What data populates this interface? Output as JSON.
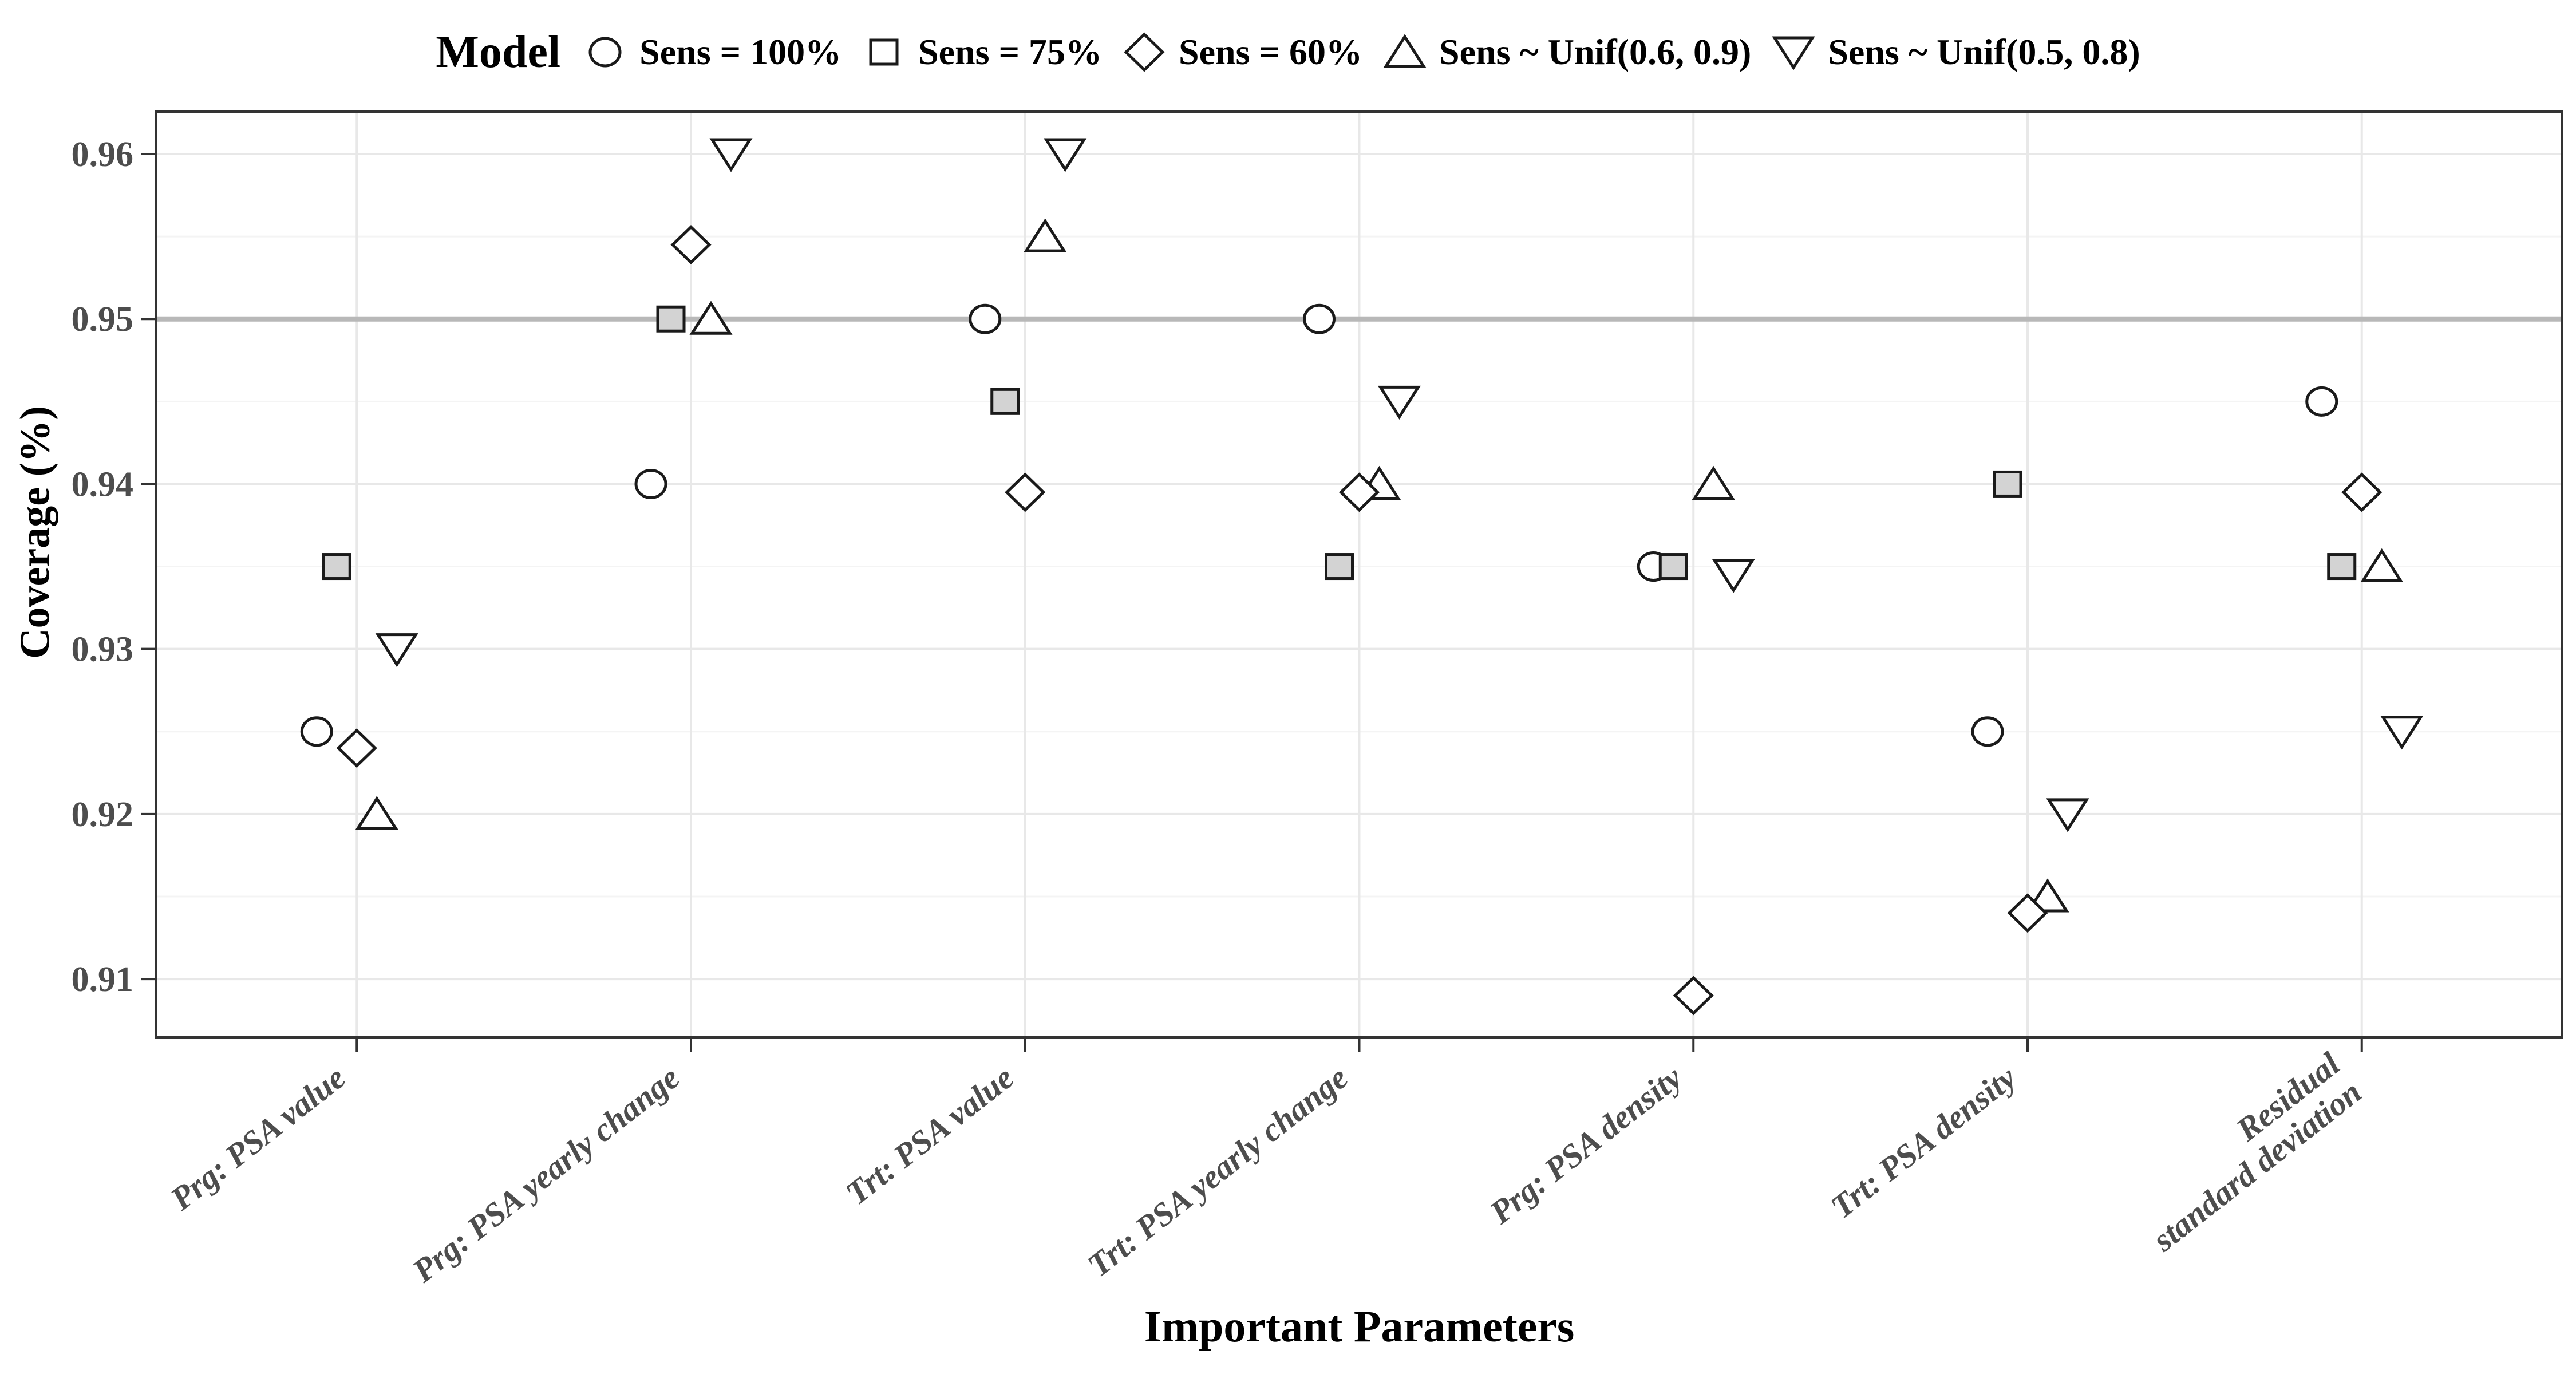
{
  "legend": {
    "title": "Model"
  },
  "colors": {
    "background": "#ffffff",
    "panel_border": "#333333",
    "grid_major": "#e8e8e8",
    "grid_minor": "#f4f4f4",
    "reference_line": "#b8b8b8",
    "tick_mark": "#333333",
    "marker_stroke": "#1a1a1a",
    "square_fill": "#d3d3d3",
    "axis_text": "#4d4d4d",
    "title_text": "#000000"
  },
  "chart_data": {
    "type": "scatter",
    "title": "Model",
    "xlabel": "Important Parameters",
    "ylabel": "Coverage (%)",
    "legend_position": "top",
    "grid": "major+minor",
    "ylim": [
      0.9065,
      0.9626
    ],
    "reference_line": 0.95,
    "yticks": [
      {
        "label": "0.96",
        "value": 0.96
      },
      {
        "label": "0.95",
        "value": 0.95
      },
      {
        "label": "0.94",
        "value": 0.94
      },
      {
        "label": "0.93",
        "value": 0.93
      },
      {
        "label": "0.92",
        "value": 0.92
      },
      {
        "label": "0.91",
        "value": 0.91
      }
    ],
    "yticks_minor": [
      0.955,
      0.945,
      0.935,
      0.925,
      0.915
    ],
    "categories": [
      "Prg: PSA value",
      "Prg: PSA yearly change",
      "Trt: PSA value",
      "Trt: PSA yearly change",
      "Prg: PSA density",
      "Trt: PSA density",
      "Residual\nstandard deviation"
    ],
    "series": [
      {
        "name": "Sens = 100%",
        "marker": "circle",
        "fill": "#ffffff",
        "values": [
          0.925,
          0.94,
          0.95,
          0.95,
          0.935,
          0.925,
          0.945
        ]
      },
      {
        "name": "Sens = 75%",
        "marker": "square",
        "fill": "#d3d3d3",
        "values": [
          0.935,
          0.95,
          0.945,
          0.935,
          0.935,
          0.94,
          0.935
        ]
      },
      {
        "name": "Sens = 60%",
        "marker": "diamond",
        "fill": "#ffffff",
        "values": [
          0.924,
          0.9545,
          0.9395,
          0.9395,
          0.909,
          0.914,
          0.9395
        ]
      },
      {
        "name": "Sens ~ Unif(0.6, 0.9)",
        "marker": "triangle-up",
        "fill": "#ffffff",
        "values": [
          0.92,
          0.95,
          0.955,
          0.94,
          0.94,
          0.915,
          0.935
        ]
      },
      {
        "name": "Sens ~ Unif(0.5, 0.8)",
        "marker": "triangle-down",
        "fill": "#ffffff",
        "values": [
          0.93,
          0.96,
          0.96,
          0.945,
          0.9345,
          0.92,
          0.925
        ]
      }
    ]
  }
}
